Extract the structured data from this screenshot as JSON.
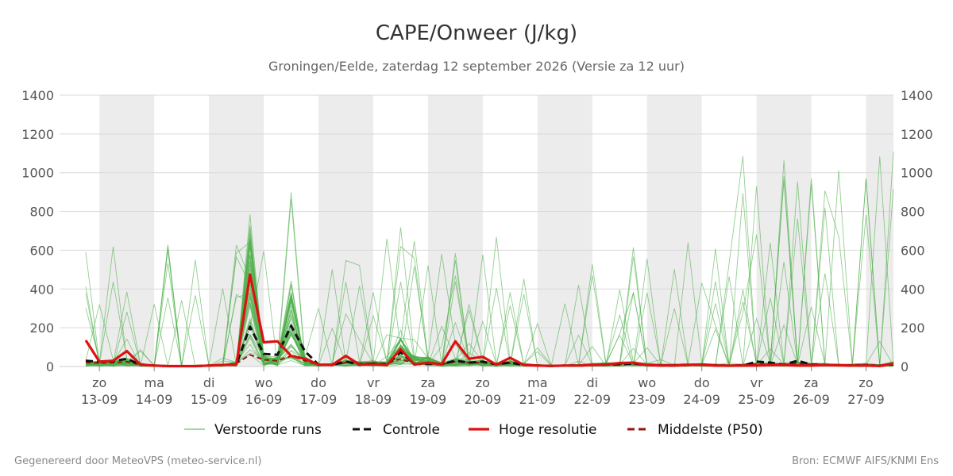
{
  "chart_data": {
    "type": "line",
    "title": "CAPE/Onweer (J/kg)",
    "subtitle": "Groningen/Eelde, zaterdag 12 september 2026 (Versie za 12 uur)",
    "xlabel": "",
    "ylabel": "",
    "ylim": [
      0,
      1400
    ],
    "yticks": [
      0,
      200,
      400,
      600,
      800,
      1000,
      1200,
      1400
    ],
    "xlim": [
      -0.25,
      14.5
    ],
    "grid": true,
    "legend_position": "bottom",
    "x_ticks": [
      {
        "day": "zo",
        "date": "13-09"
      },
      {
        "day": "ma",
        "date": "14-09"
      },
      {
        "day": "di",
        "date": "15-09"
      },
      {
        "day": "wo",
        "date": "16-09"
      },
      {
        "day": "do",
        "date": "17-09"
      },
      {
        "day": "vr",
        "date": "18-09"
      },
      {
        "day": "za",
        "date": "19-09"
      },
      {
        "day": "zo",
        "date": "20-09"
      },
      {
        "day": "ma",
        "date": "21-09"
      },
      {
        "day": "di",
        "date": "22-09"
      },
      {
        "day": "wo",
        "date": "23-09"
      },
      {
        "day": "do",
        "date": "24-09"
      },
      {
        "day": "vr",
        "date": "25-09"
      },
      {
        "day": "za",
        "date": "26-09"
      },
      {
        "day": "zo",
        "date": "27-09"
      }
    ],
    "shaded_bands": [
      [
        0,
        1
      ],
      [
        2,
        3
      ],
      [
        4,
        5
      ],
      [
        6,
        7
      ],
      [
        8,
        9
      ],
      [
        10,
        11
      ],
      [
        12,
        13
      ],
      [
        14,
        14.5
      ]
    ],
    "legend": [
      {
        "label": "Verstoorde runs",
        "color": "#4daf4a",
        "style": "thin"
      },
      {
        "label": "Controle",
        "color": "#111111",
        "style": "dashed"
      },
      {
        "label": "Hoge resolutie",
        "color": "#dd1111",
        "style": "solid"
      },
      {
        "label": "Middelste (P50)",
        "color": "#9b1111",
        "style": "dashed"
      }
    ],
    "series": [
      {
        "name": "Hoge resolutie",
        "color": "#dd1111",
        "x": [
          -0.25,
          0,
          0.25,
          0.5,
          0.75,
          1,
          1.25,
          1.5,
          1.75,
          2,
          2.25,
          2.5,
          2.75,
          3,
          3.25,
          3.5,
          3.75,
          4,
          4.25,
          4.5,
          4.75,
          5,
          5.25,
          5.5,
          5.75,
          6,
          6.25,
          6.5,
          6.75,
          7,
          7.25,
          7.5,
          7.75,
          8,
          8.25,
          8.5,
          8.75,
          9,
          9.25,
          9.5,
          9.75,
          10,
          10.25,
          10.5,
          10.75,
          11,
          11.25,
          11.5,
          11.75,
          12,
          12.25,
          12.5,
          12.75,
          13,
          13.25,
          13.5,
          13.75,
          14,
          14.25,
          14.5
        ],
        "y": [
          135,
          25,
          30,
          80,
          10,
          5,
          2,
          2,
          2,
          5,
          8,
          10,
          475,
          125,
          130,
          55,
          40,
          10,
          8,
          55,
          10,
          12,
          8,
          90,
          10,
          20,
          12,
          130,
          40,
          50,
          10,
          45,
          8,
          5,
          3,
          5,
          5,
          8,
          10,
          18,
          20,
          8,
          5,
          5,
          8,
          10,
          5,
          4,
          5,
          5,
          8,
          8,
          5,
          5,
          8,
          6,
          5,
          5,
          3,
          15
        ]
      },
      {
        "name": "Controle",
        "color": "#111111",
        "x": [
          -0.25,
          0,
          0.25,
          0.5,
          0.75,
          1,
          1.25,
          1.5,
          1.75,
          2,
          2.25,
          2.5,
          2.75,
          3,
          3.25,
          3.5,
          3.75,
          4,
          4.25,
          4.5,
          4.75,
          5,
          5.25,
          5.5,
          5.75,
          6,
          6.25,
          6.5,
          6.75,
          7,
          7.25,
          7.5,
          7.75,
          8,
          8.25,
          8.5,
          8.75,
          9,
          9.25,
          9.5,
          9.75,
          10,
          10.25,
          10.5,
          10.75,
          11,
          11.25,
          11.5,
          11.75,
          12,
          12.25,
          12.5,
          12.75,
          13,
          13.25,
          13.5,
          13.75,
          14,
          14.25,
          14.5
        ],
        "y": [
          30,
          25,
          28,
          40,
          10,
          5,
          2,
          2,
          2,
          5,
          8,
          10,
          205,
          65,
          60,
          210,
          80,
          10,
          8,
          25,
          12,
          15,
          10,
          75,
          12,
          15,
          12,
          30,
          20,
          25,
          12,
          20,
          8,
          5,
          3,
          5,
          5,
          8,
          10,
          12,
          15,
          8,
          5,
          5,
          8,
          10,
          5,
          4,
          5,
          25,
          20,
          10,
          30,
          10,
          8,
          6,
          5,
          5,
          3,
          12
        ]
      },
      {
        "name": "Middelste (P50)",
        "color": "#9b1111",
        "x": [
          -0.25,
          0,
          0.25,
          0.5,
          0.75,
          1,
          1.25,
          1.5,
          1.75,
          2,
          2.25,
          2.5,
          2.75,
          3,
          3.25,
          3.5,
          3.75,
          4,
          4.25,
          4.5,
          4.75,
          5,
          5.25,
          5.5,
          5.75,
          6,
          6.25,
          6.5,
          6.75,
          7,
          7.25,
          7.5,
          7.75,
          8,
          8.25,
          8.5,
          8.75,
          9,
          9.25,
          9.5,
          9.75,
          10,
          10.25,
          10.5,
          10.75,
          11,
          11.25,
          11.5,
          11.75,
          12,
          12.25,
          12.5,
          12.75,
          13,
          13.25,
          13.5,
          13.75,
          14,
          14.25,
          14.5
        ],
        "y": [
          20,
          18,
          20,
          25,
          8,
          4,
          2,
          2,
          2,
          4,
          6,
          15,
          60,
          35,
          30,
          55,
          30,
          8,
          10,
          20,
          15,
          18,
          15,
          40,
          15,
          15,
          12,
          25,
          20,
          20,
          12,
          18,
          10,
          6,
          5,
          6,
          6,
          10,
          12,
          12,
          14,
          10,
          8,
          8,
          10,
          10,
          8,
          6,
          8,
          12,
          12,
          10,
          15,
          10,
          10,
          8,
          8,
          10,
          6,
          15
        ]
      },
      {
        "name": "Verstoorde runs",
        "color": "#4daf4a",
        "count": 50
      }
    ]
  },
  "footer": {
    "left": "Gegenereerd door MeteoVPS (meteo-service.nl)",
    "right": "Bron: ECMWF AIFS/KNMI Ens"
  }
}
